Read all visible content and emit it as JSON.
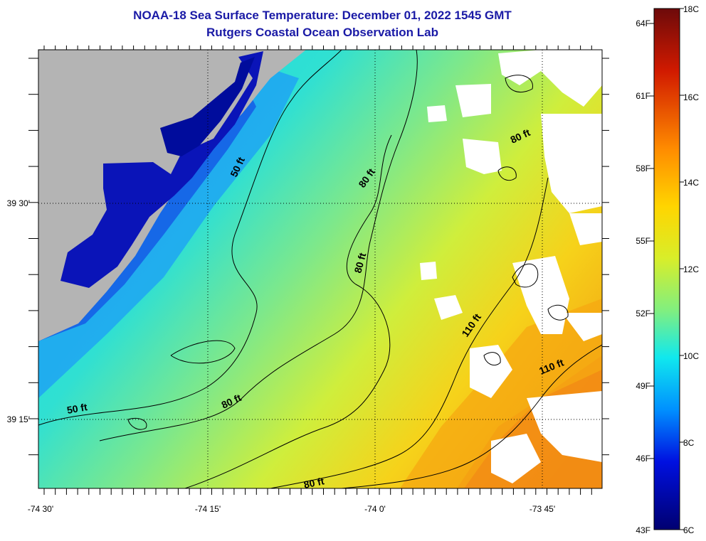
{
  "title": {
    "line1": "NOAA-18 Sea Surface Temperature:  December 01, 2022 1545 GMT",
    "line2": "Rutgers Coastal Ocean Observation Lab"
  },
  "map": {
    "lon_labels": [
      "-74 30'",
      "-74 15'",
      "-74 0'",
      "-73 45'"
    ],
    "lat_labels": [
      "39 30'",
      "39 15'"
    ],
    "contour_labels": [
      "50 ft",
      "50 ft",
      "80 ft",
      "80 ft",
      "80 ft",
      "80 ft",
      "80 ft",
      "110 ft",
      "110 ft"
    ],
    "land_color": "#b4b4b4",
    "no_data_color": "#ffffff"
  },
  "colorbar": {
    "fahrenheit_labels": [
      "64F",
      "61F",
      "58F",
      "55F",
      "52F",
      "49F",
      "46F",
      "43F"
    ],
    "celsius_labels": [
      "18C",
      "16C",
      "14C",
      "12C",
      "10C",
      "8C",
      "6C"
    ],
    "colors": [
      "#00008f",
      "#0000ff",
      "#0080ff",
      "#00ffff",
      "#80ff80",
      "#ffff00",
      "#ff8000",
      "#ff0000",
      "#800000"
    ]
  }
}
